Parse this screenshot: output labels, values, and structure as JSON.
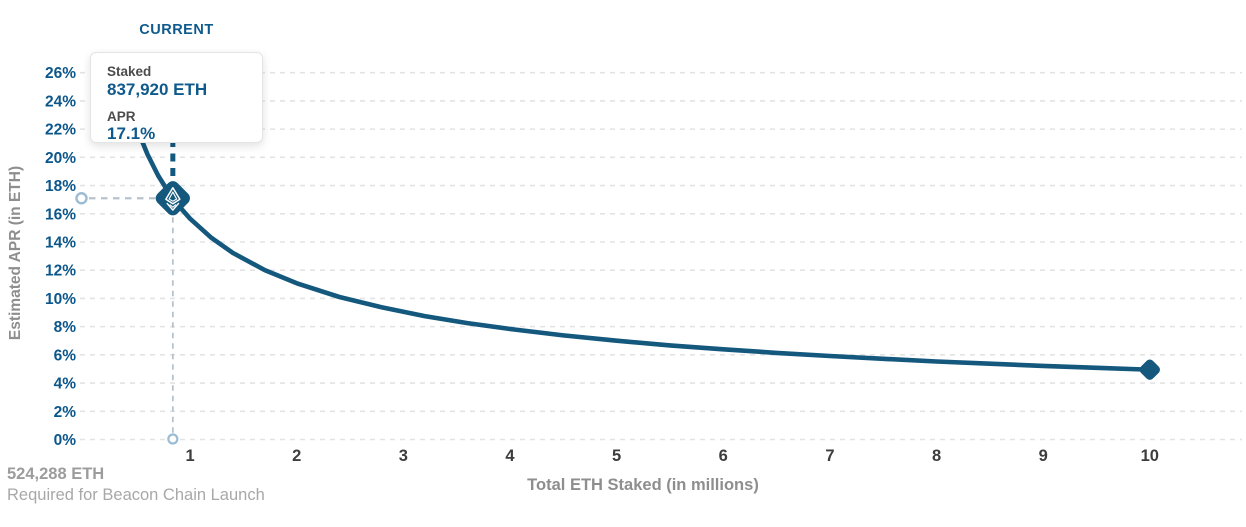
{
  "tooltip": {
    "title": "CURRENT",
    "staked_label": "Staked",
    "staked_value": "837,920 ETH",
    "apr_label": "APR",
    "apr_value": "17.1%"
  },
  "footnote": {
    "value": "524,288 ETH",
    "label": "Required for Beacon Chain Launch"
  },
  "chart_data": {
    "type": "line",
    "title": "",
    "xlabel": "Total ETH Staked  (in millions)",
    "ylabel": "Estimated APR (in ETH)",
    "xlim": [
      0,
      10.9
    ],
    "ylim": [
      0,
      27
    ],
    "x_ticks": [
      1,
      2,
      3,
      4,
      5,
      6,
      7,
      8,
      9,
      10
    ],
    "y_ticks": [
      0,
      2,
      4,
      6,
      8,
      10,
      12,
      14,
      16,
      18,
      20,
      22,
      24,
      26
    ],
    "y_tick_suffix": "%",
    "grid": "horizontal-dashed",
    "legend": "none",
    "series": [
      {
        "name": "Estimated APR (in ETH)",
        "points": [
          [
            0.524288,
            21.62
          ],
          [
            0.6,
            20.21
          ],
          [
            0.7,
            18.71
          ],
          [
            0.8,
            17.5
          ],
          [
            0.83792,
            17.1
          ],
          [
            0.9,
            16.5
          ],
          [
            1,
            15.65
          ],
          [
            1.2,
            14.29
          ],
          [
            1.4,
            13.23
          ],
          [
            1.7,
            12.01
          ],
          [
            2,
            11.07
          ],
          [
            2.4,
            10.1
          ],
          [
            2.8,
            9.36
          ],
          [
            3.2,
            8.75
          ],
          [
            3.6,
            8.25
          ],
          [
            4,
            7.83
          ],
          [
            4.5,
            7.38
          ],
          [
            5,
            7.0
          ],
          [
            5.5,
            6.67
          ],
          [
            6,
            6.39
          ],
          [
            6.5,
            6.14
          ],
          [
            7,
            5.92
          ],
          [
            7.5,
            5.72
          ],
          [
            8,
            5.53
          ],
          [
            8.5,
            5.37
          ],
          [
            9,
            5.22
          ],
          [
            9.5,
            5.08
          ],
          [
            10,
            4.95
          ]
        ]
      }
    ],
    "current_point": {
      "x": 0.83792,
      "apr": 17.1,
      "label": "CURRENT"
    },
    "end_point": {
      "x": 10,
      "apr": 4.95
    }
  },
  "colors": {
    "accent_blue": "#0f5a8c",
    "curve_blue": "#14587e",
    "tick_blue": "#0b568a",
    "helper_line": "#b6c3cc",
    "helper_circle": "#9cbcd4",
    "gridline": "#e3e3e3",
    "x_tick_gray": "#3d3d3d",
    "axis_title_gray": "#8e8e8e",
    "footnote_gray": "#9c9c9c"
  }
}
